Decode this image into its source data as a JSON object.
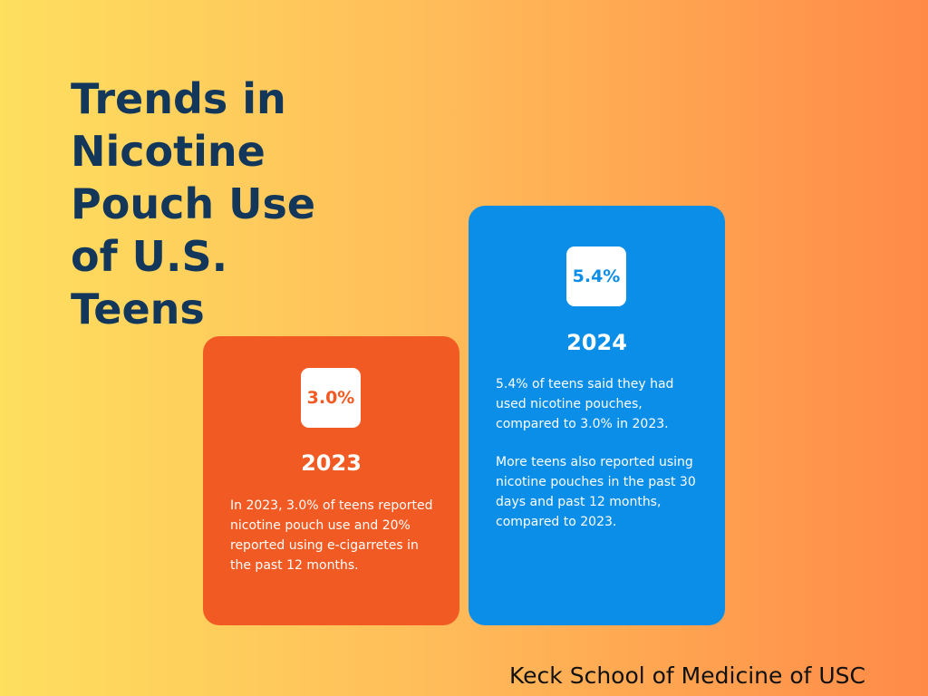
{
  "title": "Trends in Nicotine Pouch Use of U.S. Teens",
  "cards": [
    {
      "badge": "3.0%",
      "year": "2023",
      "paragraphs": [
        "In 2023, 3.0% of teens reported nicotine pouch use and 20% reported using e-cigarretes in the past 12 months."
      ]
    },
    {
      "badge": "5.4%",
      "year": "2024",
      "paragraphs": [
        "5.4% of teens said they had used nicotine pouches, compared to 3.0% in 2023.",
        "More teens also reported using nicotine pouches in the past 30 days and past 12 months, compared to 2023."
      ]
    }
  ],
  "footer": "Keck School of Medicine of USC"
}
